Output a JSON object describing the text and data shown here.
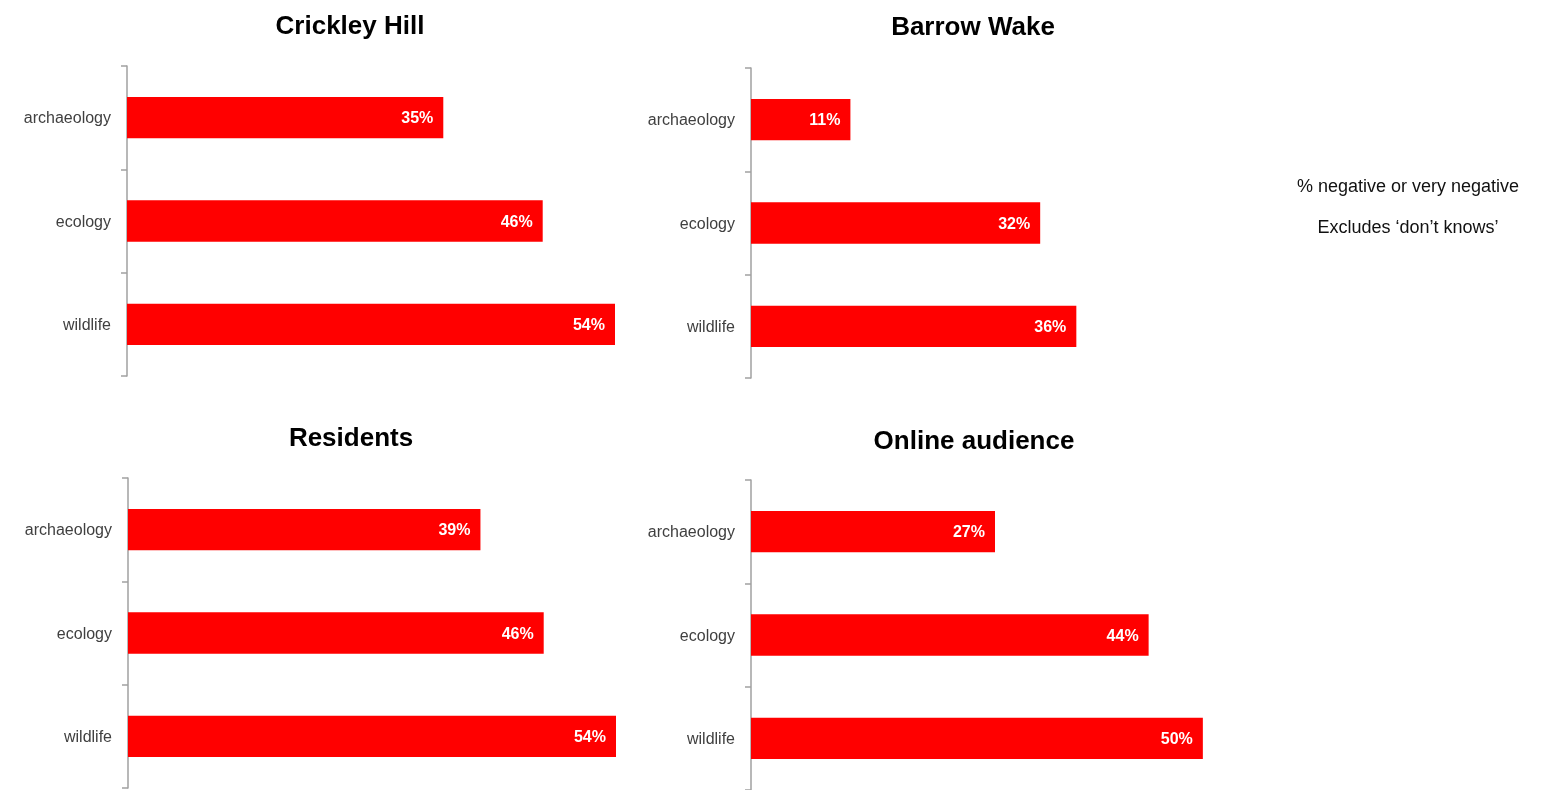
{
  "chart_data": [
    {
      "type": "bar",
      "orientation": "horizontal",
      "title": "Crickley Hill",
      "categories": [
        "archaeology",
        "ecology",
        "wildlife"
      ],
      "values": [
        35,
        46,
        54
      ],
      "value_labels": [
        "35%",
        "46%",
        "54%"
      ],
      "color": "#ff0000"
    },
    {
      "type": "bar",
      "orientation": "horizontal",
      "title": "Barrow Wake",
      "categories": [
        "archaeology",
        "ecology",
        "wildlife"
      ],
      "values": [
        11,
        32,
        36
      ],
      "value_labels": [
        "11%",
        "32%",
        "36%"
      ],
      "color": "#ff0000",
      "annotations": [
        "% negative or very negative",
        "Excludes ‘don’t knows’"
      ]
    },
    {
      "type": "bar",
      "orientation": "horizontal",
      "title": "Residents",
      "categories": [
        "archaeology",
        "ecology",
        "wildlife"
      ],
      "values": [
        39,
        46,
        54
      ],
      "value_labels": [
        "39%",
        "46%",
        "54%"
      ],
      "color": "#ff0000"
    },
    {
      "type": "bar",
      "orientation": "horizontal",
      "title": "Online audience",
      "categories": [
        "archaeology",
        "ecology",
        "wildlife"
      ],
      "values": [
        27,
        44,
        50
      ],
      "value_labels": [
        "27%",
        "44%",
        "50%"
      ],
      "color": "#ff0000"
    }
  ]
}
